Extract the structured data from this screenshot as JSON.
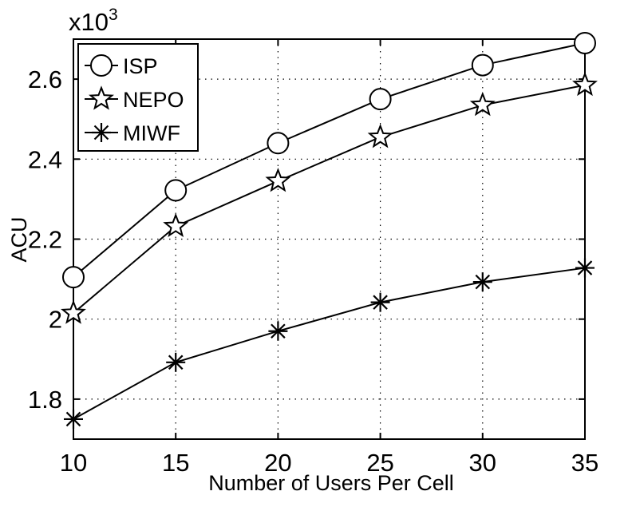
{
  "chart_data": {
    "type": "line",
    "title": "",
    "xlabel": "Number of Users Per Cell",
    "ylabel": "ACU",
    "y_multiplier_label": "x10",
    "y_multiplier_exponent": "3",
    "x": [
      10,
      15,
      20,
      25,
      30,
      35
    ],
    "xlim": [
      10,
      35
    ],
    "ylim": [
      1.7,
      2.7
    ],
    "x_ticks": [
      "10",
      "15",
      "20",
      "25",
      "30",
      "35"
    ],
    "y_ticks": [
      "1.8",
      "2",
      "2.2",
      "2.4",
      "2.6"
    ],
    "grid": true,
    "legend_position": "top-left",
    "series": [
      {
        "name": "ISP",
        "marker": "circle",
        "values": [
          2.105,
          2.322,
          2.44,
          2.55,
          2.635,
          2.69
        ]
      },
      {
        "name": "NEPO",
        "marker": "star",
        "values": [
          2.015,
          2.232,
          2.345,
          2.455,
          2.535,
          2.585
        ]
      },
      {
        "name": "MIWF",
        "marker": "asterisk",
        "values": [
          1.75,
          1.892,
          1.97,
          2.042,
          2.093,
          2.128
        ]
      }
    ]
  }
}
